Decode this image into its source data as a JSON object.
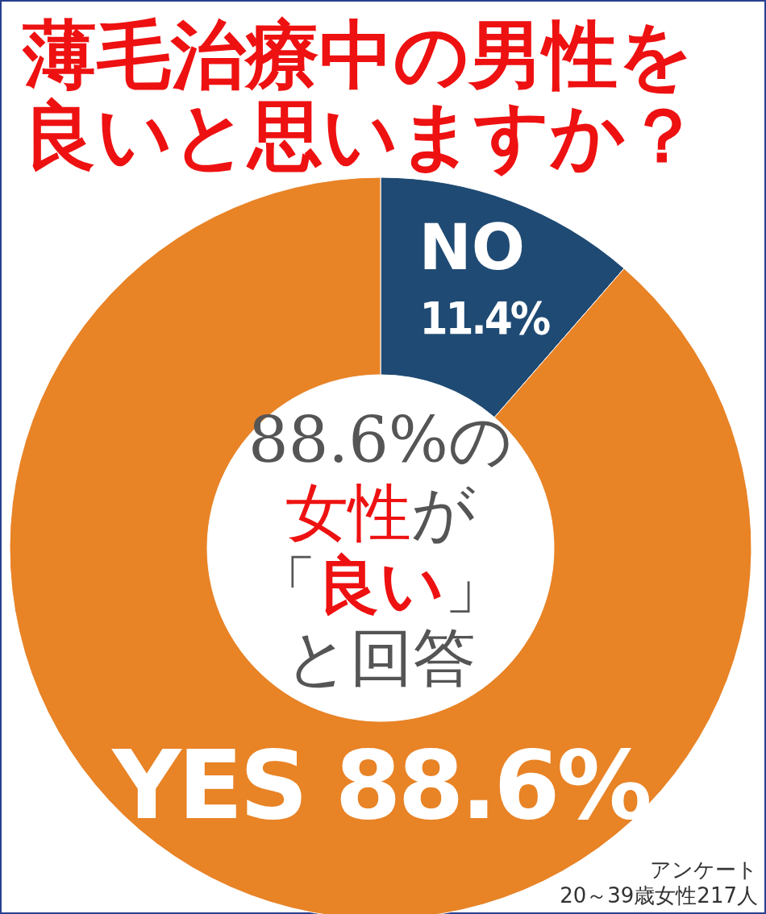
{
  "chart_data": {
    "type": "donut",
    "title": "薄毛治療中の男性を良いと思いますか？",
    "categories": [
      "NO",
      "YES"
    ],
    "values": [
      11.4,
      88.6
    ],
    "colors": [
      "#1f4a73",
      "#e88326"
    ],
    "value_labels": [
      "11.4%",
      "88.6%"
    ],
    "annotations": [
      "88.6%の女性が「良い」と回答",
      "アンケート",
      "20～39歳女性217人"
    ]
  }
}
